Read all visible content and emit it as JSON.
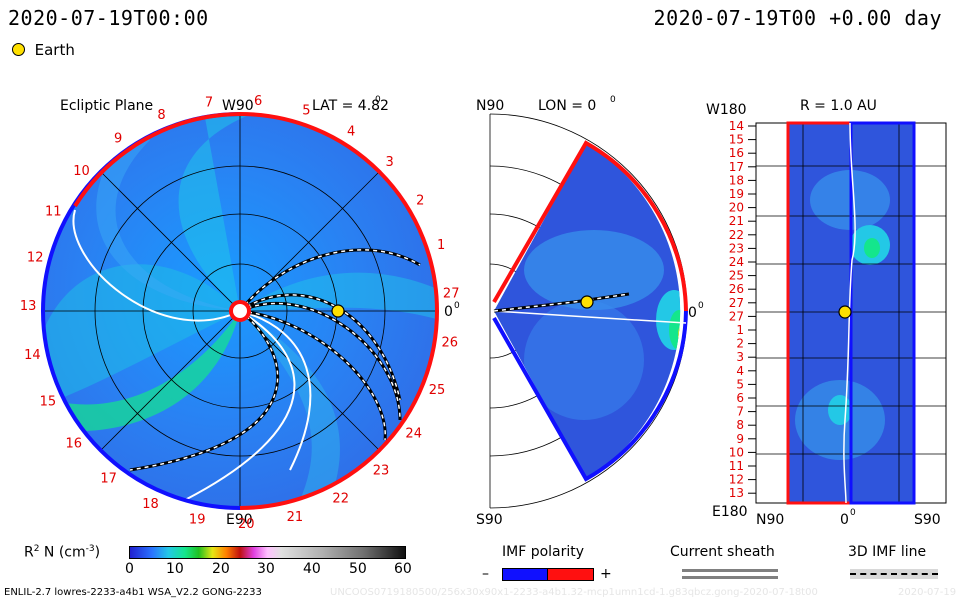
{
  "header": {
    "datetime_left": "2020-07-19T00:00",
    "datetime_right": "2020-07-19T00 +0.00 day"
  },
  "legend": {
    "earth_label": "Earth"
  },
  "panels": {
    "ecliptic": {
      "title": "Ecliptic Plane",
      "top_label": "W90",
      "bottom_label": "E90",
      "right_label": "0",
      "lat_label": "LAT = 4.82",
      "lat_sup": "0",
      "carrington_ticks": [
        "1",
        "2",
        "3",
        "4",
        "5",
        "6",
        "7",
        "8",
        "9",
        "10",
        "11",
        "12",
        "13",
        "14",
        "15",
        "16",
        "17",
        "18",
        "19",
        "20",
        "21",
        "22",
        "23",
        "24",
        "25",
        "26",
        "27"
      ]
    },
    "meridional": {
      "top_label": "N90",
      "bottom_label": "S90",
      "lon_label": "LON = 0",
      "lon_sup": "0",
      "right_label": "0"
    },
    "radial": {
      "title": "R = 1.0 AU",
      "top_left_label": "W180",
      "bottom_left_label": "E180",
      "bottom_labels": [
        "N90",
        "0",
        "S90"
      ],
      "bottom_sup": "0",
      "rows": [
        "14",
        "15",
        "16",
        "17",
        "18",
        "19",
        "20",
        "21",
        "22",
        "23",
        "24",
        "25",
        "26",
        "27",
        "27",
        "1",
        "2",
        "3",
        "4",
        "5",
        "6",
        "7",
        "8",
        "9",
        "10",
        "11",
        "12",
        "13"
      ]
    }
  },
  "colorbar": {
    "label": "R",
    "label_sup": "2",
    "label_rest": " N (cm",
    "label_exp": "-3",
    "label_end": ")",
    "ticks": [
      "0",
      "10",
      "20",
      "30",
      "40",
      "50",
      "60"
    ]
  },
  "imf": {
    "label": "IMF polarity",
    "minus": "–",
    "plus": "+"
  },
  "current_sheath": {
    "label": "Current sheath"
  },
  "imf_line": {
    "label": "3D IMF line"
  },
  "footer": {
    "left": "ENLIL-2.7 lowres-2233-a4b1 WSA_V2.2 GONG-2233",
    "watermark": "UNCOOS0719180500/256x30x90x1-2233-a4b1.32-mcp1umn1cd-1.g83qbcz.gong-2020-07-18t00",
    "right": "2020-07-19"
  },
  "colors": {
    "background_plasma": "#2a73ff",
    "mid_density": "#23c8e6",
    "high_density": "#14e68c",
    "positive_polarity": "#ff1010",
    "negative_polarity": "#1010ff",
    "earth": "#ffe000",
    "tick_label": "#e00000"
  }
}
